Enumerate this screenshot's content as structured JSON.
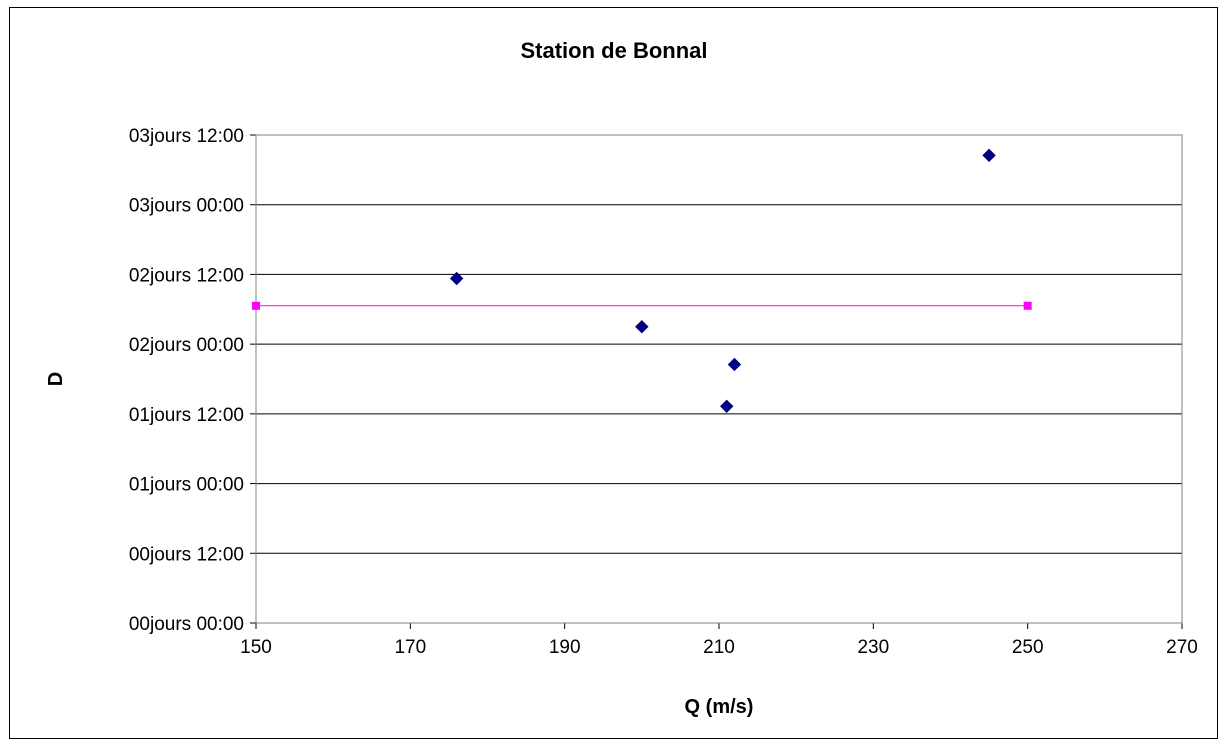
{
  "chart_data": {
    "type": "scatter",
    "title": "Station de Bonnal",
    "xlabel": "Q (m/s)",
    "ylabel": "D",
    "xlim": [
      150,
      270
    ],
    "x_ticks": [
      "150",
      "170",
      "190",
      "210",
      "230",
      "250",
      "270"
    ],
    "ylim_hours": [
      0,
      84
    ],
    "y_ticks": [
      "00jours 00:00",
      "00jours 12:00",
      "01jours 00:00",
      "01jours 12:00",
      "02jours 00:00",
      "02jours 12:00",
      "03jours 00:00",
      "03jours 12:00"
    ],
    "grid": "horizontal",
    "legend": "none",
    "series": [
      {
        "marker": "diamond",
        "color": "#000080",
        "points": [
          {
            "x": 176,
            "y_hours": 59.3
          },
          {
            "x": 200,
            "y_hours": 51.0
          },
          {
            "x": 212,
            "y_hours": 44.5
          },
          {
            "x": 211,
            "y_hours": 37.3
          },
          {
            "x": 245,
            "y_hours": 80.5
          }
        ]
      },
      {
        "marker": "square",
        "line": true,
        "color": "#FF00FF",
        "points": [
          {
            "x": 150,
            "y_hours": 54.6
          },
          {
            "x": 250,
            "y_hours": 54.6
          }
        ]
      }
    ]
  }
}
